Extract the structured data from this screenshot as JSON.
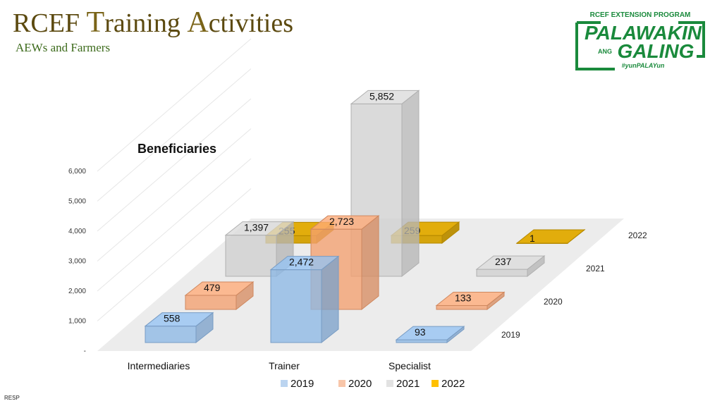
{
  "title": "RCEF Training Activities",
  "subtitle": "AEWs and Farmers",
  "logo": {
    "top_text": "RCEF EXTENSION PROGRAM",
    "line1": "PALAWAKIN",
    "ang": "ANG",
    "line2": "GALING",
    "hashtag": "#yunPALAYun"
  },
  "footer": "RESP",
  "chart_data": {
    "type": "bar",
    "subtype": "3d-column",
    "title": "Beneficiaries",
    "categories": [
      "Intermediaries",
      "Trainer",
      "Specialist"
    ],
    "series": [
      {
        "name": "2019",
        "values": [
          558,
          2472,
          93
        ],
        "color": "#8db8e6"
      },
      {
        "name": "2020",
        "values": [
          479,
          2723,
          133
        ],
        "color": "#f4a070"
      },
      {
        "name": "2021",
        "values": [
          1397,
          5852,
          237
        ],
        "color": "#cfcfcf"
      },
      {
        "name": "2022",
        "values": [
          255,
          259,
          1
        ],
        "color": "#d4a000"
      }
    ],
    "value_labels": [
      [
        "558",
        "2,472",
        "93"
      ],
      [
        "479",
        "2,723",
        "133"
      ],
      [
        "1,397",
        "5,852",
        "237"
      ],
      [
        "255",
        "259",
        "1"
      ]
    ],
    "y_ticks": [
      "-",
      "1,000",
      "2,000",
      "3,000",
      "4,000",
      "5,000",
      "6,000"
    ],
    "ylim": [
      0,
      6000
    ],
    "legend_position": "bottom"
  }
}
